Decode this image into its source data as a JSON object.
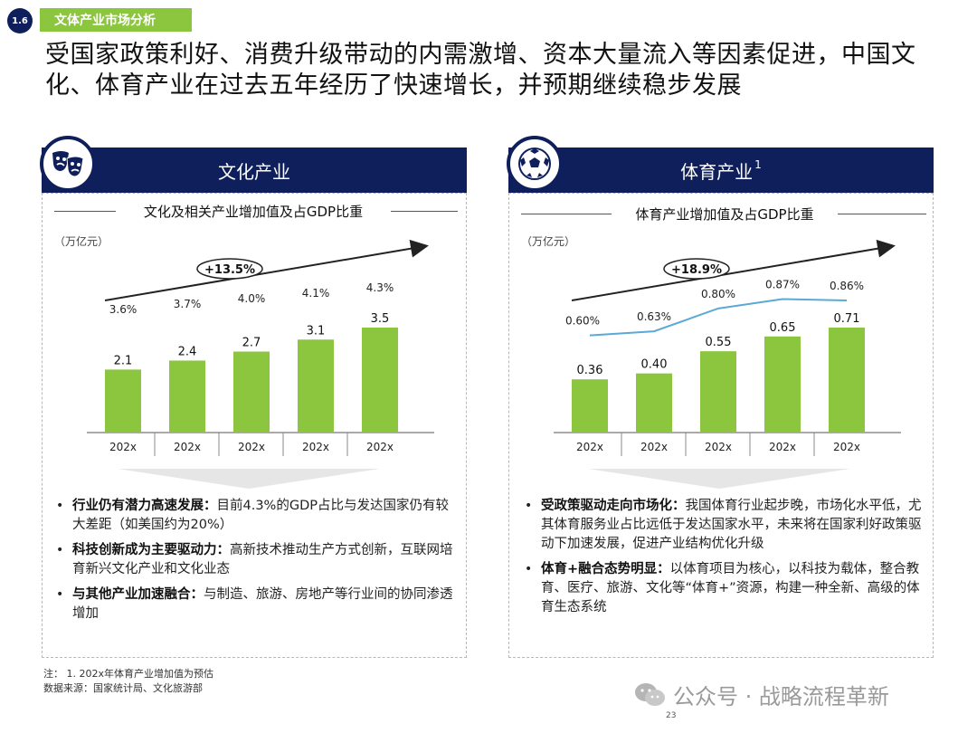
{
  "section": {
    "number": "1.6",
    "tag": "文体产业市场分析"
  },
  "headline": "受国家政策利好、消费升级带动的内需激增、资本大量流入等因素促进，中国文化、体育产业在过去五年经历了快速增长，并预期继续稳步发展",
  "culture": {
    "title": "文化产业",
    "icon": "theater-masks-icon",
    "subtitle": "文化及相关产业增加值及占GDP比重",
    "unit": "（万亿元）",
    "cagr": "+13.5%",
    "bullets": [
      {
        "bold": "行业仍有潜力高速发展：",
        "text": "目前4.3%的GDP占比与发达国家仍有较大差距（如美国约为20%）"
      },
      {
        "bold": "科技创新成为主要驱动力：",
        "text": "高新技术推动生产方式创新，互联网培育新兴文化产业和文化业态"
      },
      {
        "bold": "与其他产业加速融合：",
        "text": "与制造、旅游、房地产等行业间的协同渗透增加"
      }
    ]
  },
  "sports": {
    "title": "体育产业",
    "title_sup": "1",
    "icon": "soccer-ball-icon",
    "subtitle": "体育产业增加值及占GDP比重",
    "unit": "（万亿元）",
    "cagr": "+18.9%",
    "bullets": [
      {
        "bold": "受政策驱动走向市场化：",
        "text": "我国体育行业起步晚，市场化水平低，尤其体育服务业占比远低于发达国家水平，未来将在国家利好政策驱动下加速发展，促进产业结构优化升级"
      },
      {
        "bold": "体育+融合态势明显：",
        "text": "以体育项目为核心，以科技为载体，整合教育、医疗、旅游、文化等“体育+”资源，构建一种全新、高级的体育生态系统"
      }
    ]
  },
  "chart_data": [
    {
      "type": "bar",
      "categories": [
        "202x",
        "202x",
        "202x",
        "202x",
        "202x"
      ],
      "series": [
        {
          "values": [
            2.1,
            2.4,
            2.7,
            3.1,
            3.5
          ]
        }
      ],
      "value_labels": [
        "2.1",
        "2.4",
        "2.7",
        "3.1",
        "3.5"
      ],
      "pct_labels": [
        "3.6%",
        "3.7%",
        "4.0%",
        "4.1%",
        "4.3%"
      ],
      "pct_values": [
        3.6,
        3.7,
        4.0,
        4.1,
        4.3
      ],
      "bar_color": "#8cc63f",
      "ylim": [
        0,
        3.5
      ]
    },
    {
      "type": "bar",
      "categories": [
        "202x",
        "202x",
        "202x",
        "202x",
        "202x"
      ],
      "series": [
        {
          "values": [
            0.36,
            0.4,
            0.55,
            0.65,
            0.71
          ]
        }
      ],
      "value_labels": [
        "0.36",
        "0.40",
        "0.55",
        "0.65",
        "0.71"
      ],
      "pct_labels": [
        "0.60%",
        "0.63%",
        "0.80%",
        "0.87%",
        "0.86%"
      ],
      "pct_values": [
        0.6,
        0.63,
        0.8,
        0.87,
        0.86
      ],
      "line_color": "#5aa9d6",
      "bar_color": "#8cc63f",
      "ylim": [
        0,
        0.71
      ]
    }
  ],
  "notes": {
    "line1": "注：  1. 202x年体育产业增加值为预估",
    "line2": "数据来源：国家统计局、文化旅游部"
  },
  "page_number": "23",
  "watermark": "公众号 · 战略流程革新"
}
